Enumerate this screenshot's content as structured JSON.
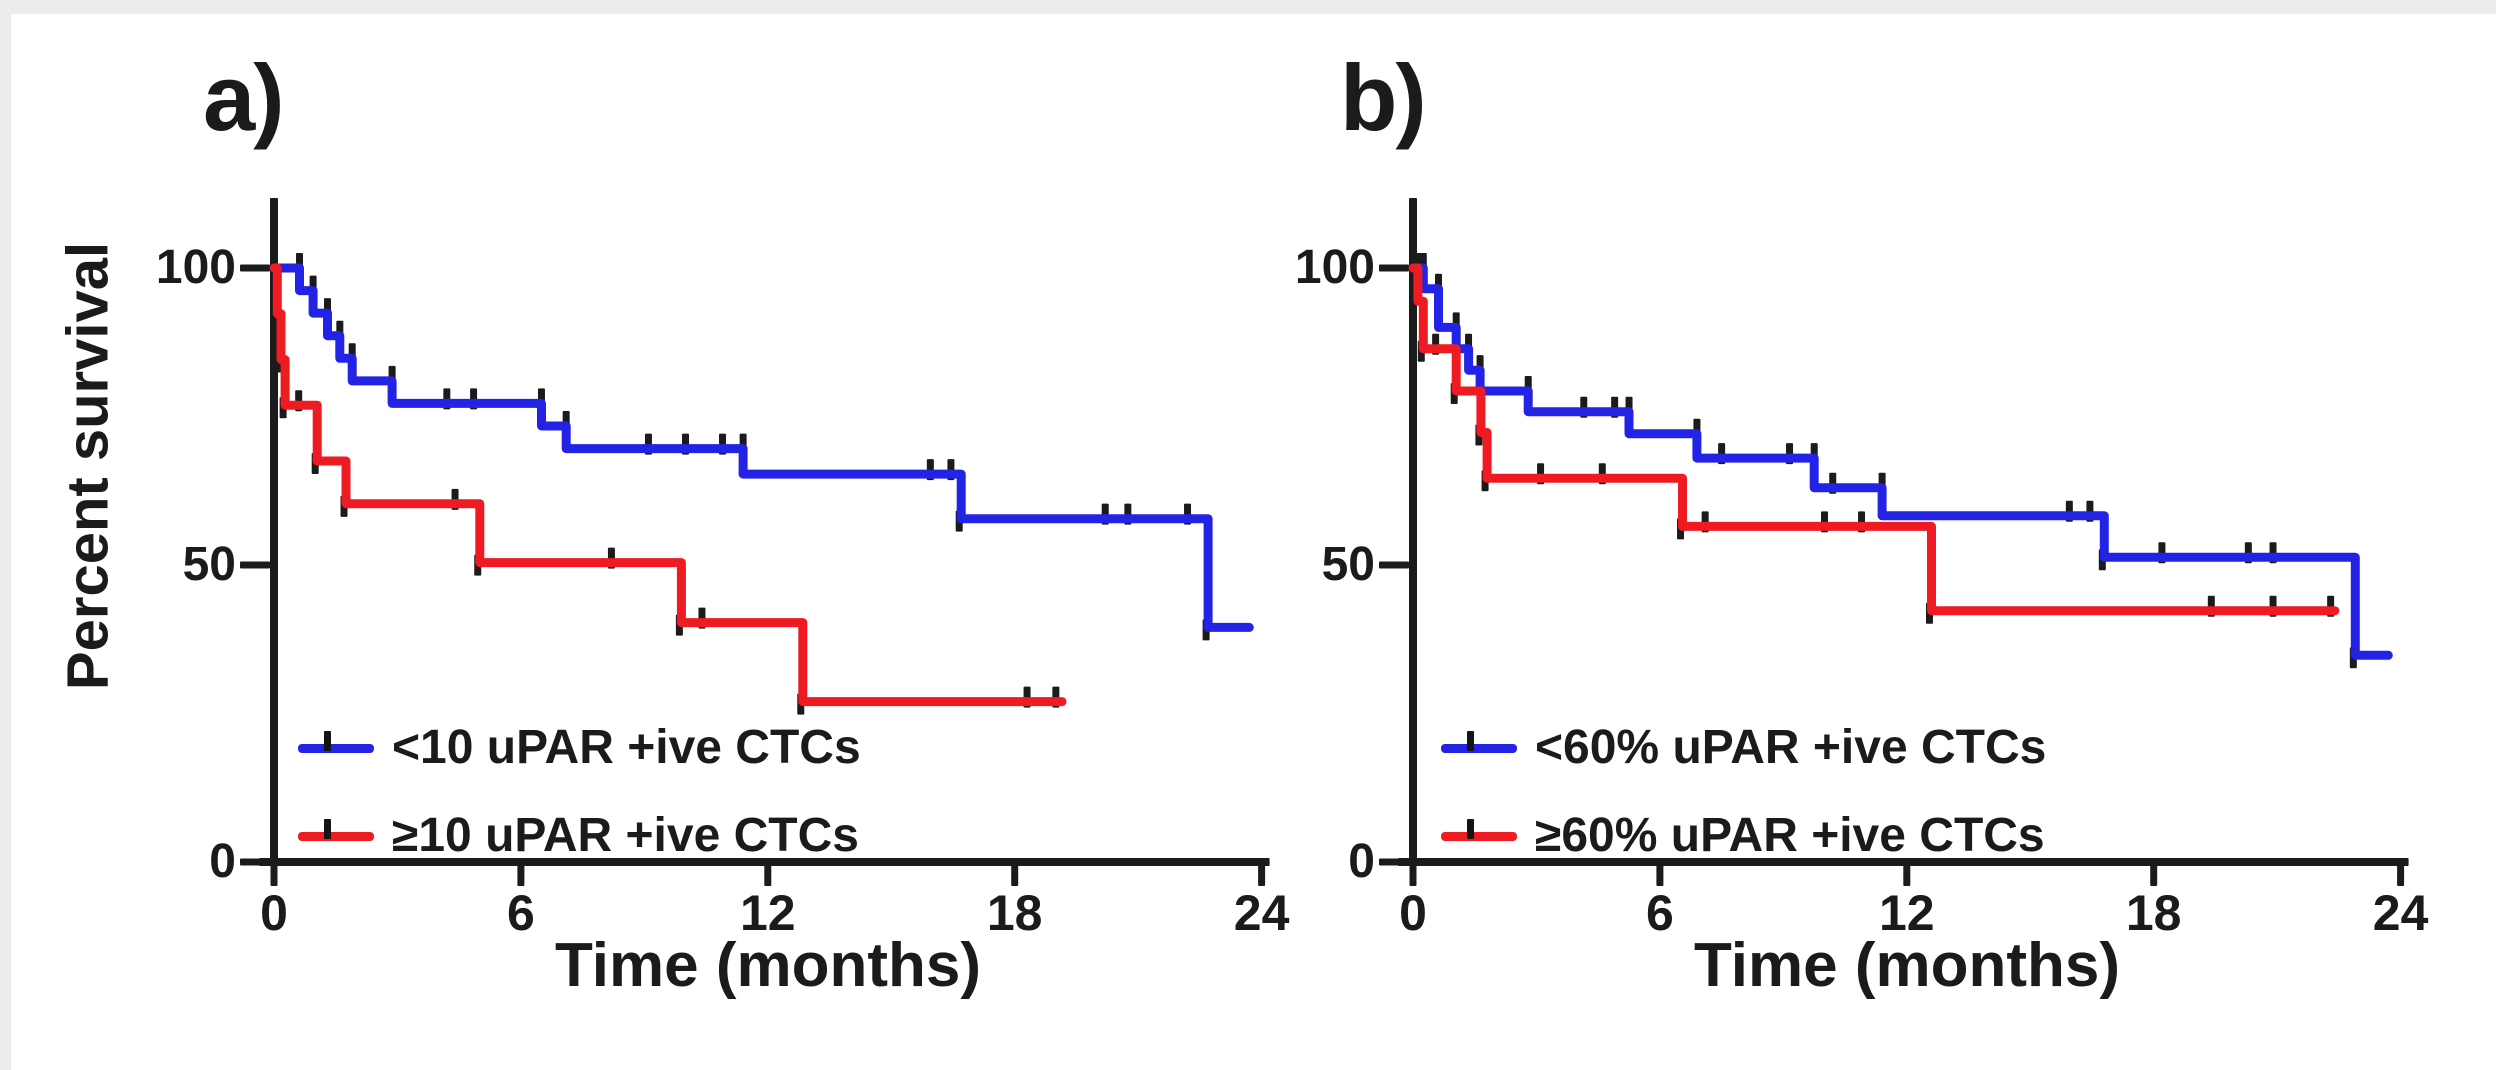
{
  "page": {
    "background": "#ffffff",
    "edge_shade": "#ececec",
    "axis_color": "#1b1b1b"
  },
  "chart_data": [
    {
      "type": "line",
      "subtype": "kaplan-meier-step",
      "panel_label": "a)",
      "xlabel": "Time (months)",
      "ylabel": "Percent survival",
      "x_ticks": [
        0,
        6,
        12,
        18,
        24
      ],
      "y_ticks": [
        100,
        50,
        0
      ],
      "xlim": [
        0,
        24
      ],
      "ylim": [
        0,
        110
      ],
      "grid": false,
      "legend_position": "inside-lower-left",
      "series": [
        {
          "name": "<10 uPAR +ive CTCs",
          "color": "#2323e6",
          "steps": [
            [
              0,
              100
            ],
            [
              0.62,
              96.2
            ],
            [
              0.95,
              92.4
            ],
            [
              1.3,
              88.6
            ],
            [
              1.6,
              84.8
            ],
            [
              1.9,
              81.0
            ],
            [
              2.87,
              77.2
            ],
            [
              6.5,
              73.4
            ],
            [
              7.1,
              69.6
            ],
            [
              11.4,
              65.3
            ],
            [
              16.7,
              57.8
            ],
            [
              22.7,
              39.5
            ]
          ],
          "end": 23.7,
          "censors": [
            4.2,
            4.85,
            9.1,
            10.0,
            10.9,
            15.95,
            16.45,
            20.2,
            20.75,
            22.2
          ]
        },
        {
          "name": "≥10 uPAR +ive CTCs",
          "color": "#ee1b22",
          "steps": [
            [
              0,
              100
            ],
            [
              0.08,
              92.3
            ],
            [
              0.17,
              84.6
            ],
            [
              0.27,
              76.9
            ],
            [
              1.05,
              67.5
            ],
            [
              1.75,
              60.3
            ],
            [
              5.0,
              50.4
            ],
            [
              9.9,
              40.3
            ],
            [
              12.85,
              27.0
            ]
          ],
          "end": 19.15,
          "censors": [
            0.6,
            4.4,
            8.2,
            10.4,
            18.3,
            19.0
          ]
        }
      ]
    },
    {
      "type": "line",
      "subtype": "kaplan-meier-step",
      "panel_label": "b)",
      "xlabel": "Time (months)",
      "ylabel": "",
      "x_ticks": [
        0,
        6,
        12,
        18,
        24
      ],
      "y_ticks": [
        100,
        50,
        0
      ],
      "xlim": [
        0,
        24
      ],
      "ylim": [
        0,
        110
      ],
      "grid": false,
      "legend_position": "inside-lower-left",
      "series": [
        {
          "name": "<60% uPAR +ive CTCs",
          "color": "#2323e6",
          "steps": [
            [
              0,
              100
            ],
            [
              0.25,
              96.5
            ],
            [
              0.62,
              90.0
            ],
            [
              1.05,
              86.4
            ],
            [
              1.35,
              82.8
            ],
            [
              1.63,
              79.3
            ],
            [
              2.8,
              75.8
            ],
            [
              5.25,
              72.1
            ],
            [
              6.9,
              68.0
            ],
            [
              9.75,
              63.0
            ],
            [
              11.4,
              58.3
            ],
            [
              16.8,
              51.3
            ],
            [
              22.9,
              34.8
            ]
          ],
          "end": 23.7,
          "censors": [
            4.15,
            4.9,
            7.5,
            9.15,
            10.2,
            15.95,
            16.45,
            18.2,
            20.3,
            20.9
          ]
        },
        {
          "name": "≥60% uPAR +ive CTCs",
          "color": "#ee1b22",
          "steps": [
            [
              0,
              100
            ],
            [
              0.12,
              94.4
            ],
            [
              0.25,
              86.4
            ],
            [
              1.05,
              79.3
            ],
            [
              1.65,
              72.3
            ],
            [
              1.8,
              64.6
            ],
            [
              6.55,
              56.5
            ],
            [
              12.6,
              42.3
            ]
          ],
          "end": 22.4,
          "censors": [
            0.55,
            3.1,
            4.6,
            7.1,
            10.0,
            10.9,
            19.4,
            20.9,
            22.3
          ]
        }
      ]
    }
  ]
}
